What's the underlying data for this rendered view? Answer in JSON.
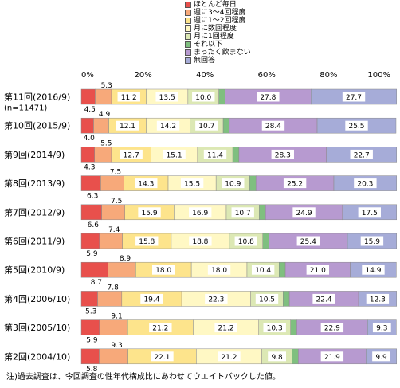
{
  "chart_data": {
    "type": "bar",
    "orientation": "horizontal",
    "stacked": true,
    "percent": true,
    "xlim": [
      0,
      100
    ],
    "x_ticks": [
      "0%",
      "20%",
      "40%",
      "60%",
      "80%",
      "100%"
    ],
    "grid": false,
    "legend_position": "top-right",
    "categories": [
      {
        "label": "第11回(2016/9)",
        "sublabel": "(n=11471)"
      },
      {
        "label": "第10回(2015/9)",
        "sublabel": ""
      },
      {
        "label": "第9回(2014/9)",
        "sublabel": ""
      },
      {
        "label": "第8回(2013/9)",
        "sublabel": ""
      },
      {
        "label": "第7回(2012/9)",
        "sublabel": ""
      },
      {
        "label": "第6回(2011/9)",
        "sublabel": ""
      },
      {
        "label": "第5回(2010/9)",
        "sublabel": ""
      },
      {
        "label": "第4回(2006/10)",
        "sublabel": ""
      },
      {
        "label": "第3回(2005/10)",
        "sublabel": ""
      },
      {
        "label": "第2回(2004/10)",
        "sublabel": ""
      }
    ],
    "series": [
      {
        "name": "ほとんど毎日",
        "color": "#e8504c",
        "values": [
          4.5,
          4.0,
          4.3,
          6.3,
          6.6,
          5.9,
          8.7,
          5.3,
          5.9,
          5.8
        ]
      },
      {
        "name": "週に3～4回程度",
        "color": "#f7a97a",
        "values": [
          5.3,
          4.9,
          5.5,
          7.5,
          7.5,
          7.4,
          8.9,
          7.8,
          9.1,
          9.3
        ]
      },
      {
        "name": "週に1～2回程度",
        "color": "#fde48c",
        "values": [
          11.2,
          12.1,
          12.7,
          14.3,
          15.9,
          15.8,
          18.0,
          19.4,
          21.2,
          22.1
        ]
      },
      {
        "name": "月に数回程度",
        "color": "#fff8c4",
        "values": [
          13.5,
          14.2,
          15.1,
          15.5,
          16.9,
          18.8,
          18.0,
          22.3,
          21.2,
          21.2
        ]
      },
      {
        "name": "月に1回程度",
        "color": "#dce8b4",
        "values": [
          10.0,
          10.7,
          11.4,
          10.9,
          10.7,
          10.8,
          10.4,
          10.5,
          10.3,
          9.8
        ]
      },
      {
        "name": "それ以下",
        "color": "#7fbf7f",
        "values": [
          2.0,
          2.0,
          2.0,
          2.0,
          2.0,
          2.0,
          2.0,
          2.0,
          2.0,
          2.0
        ]
      },
      {
        "name": "まったく飲まない",
        "color": "#b79ad0",
        "values": [
          27.8,
          28.4,
          28.3,
          25.2,
          24.9,
          25.4,
          21.0,
          22.4,
          22.9,
          21.9
        ]
      },
      {
        "name": "無回答",
        "color": "#a6acd8",
        "values": [
          27.7,
          25.5,
          22.7,
          20.3,
          17.5,
          15.9,
          14.9,
          12.3,
          9.3,
          9.9
        ]
      }
    ],
    "hidden_label_series": [
      "それ以下"
    ],
    "external_label_series": [
      "ほとんど毎日",
      "週に3～4回程度"
    ]
  },
  "footnote": "注)過去調査は、今回調査の性年代構成比にあわせてウエイトバックした値。"
}
